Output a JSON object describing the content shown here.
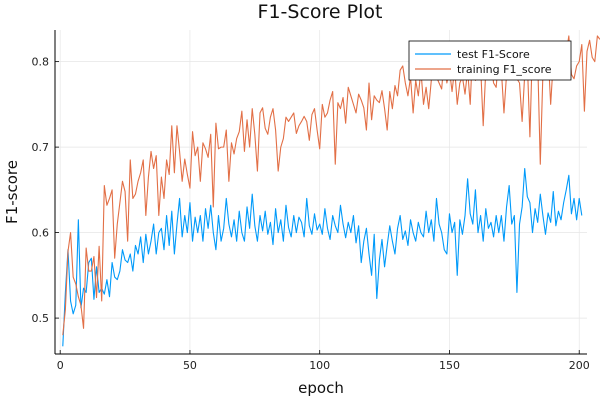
{
  "chart_data": {
    "type": "line",
    "title": "F1-Score Plot",
    "xlabel": "epoch",
    "ylabel": "F1-score",
    "xlim": [
      -2,
      203
    ],
    "ylim": [
      0.458,
      0.837
    ],
    "xticks": [
      0,
      50,
      100,
      150,
      200
    ],
    "yticks": [
      0.5,
      0.6,
      0.7,
      0.8
    ],
    "xtick_labels": [
      "0",
      "50",
      "100",
      "150",
      "200"
    ],
    "ytick_labels": [
      "0.5",
      "0.6",
      "0.7",
      "0.8"
    ],
    "grid": true,
    "legend_position": "top-right",
    "series": [
      {
        "name": "test F1-Score",
        "color": "#009AFA",
        "values": [
          0.467,
          0.53,
          0.58,
          0.52,
          0.505,
          0.515,
          0.615,
          0.512,
          0.535,
          0.53,
          0.565,
          0.57,
          0.522,
          0.56,
          0.53,
          0.535,
          0.528,
          0.545,
          0.525,
          0.565,
          0.548,
          0.545,
          0.555,
          0.58,
          0.568,
          0.565,
          0.575,
          0.555,
          0.585,
          0.575,
          0.595,
          0.565,
          0.598,
          0.575,
          0.59,
          0.61,
          0.575,
          0.6,
          0.605,
          0.58,
          0.62,
          0.585,
          0.625,
          0.575,
          0.61,
          0.64,
          0.595,
          0.62,
          0.6,
          0.635,
          0.59,
          0.618,
          0.6,
          0.62,
          0.59,
          0.628,
          0.605,
          0.632,
          0.6,
          0.58,
          0.62,
          0.59,
          0.605,
          0.64,
          0.61,
          0.595,
          0.615,
          0.59,
          0.625,
          0.6,
          0.59,
          0.63,
          0.605,
          0.645,
          0.608,
          0.59,
          0.62,
          0.602,
          0.625,
          0.598,
          0.612,
          0.586,
          0.628,
          0.6,
          0.615,
          0.59,
          0.632,
          0.606,
          0.595,
          0.62,
          0.6,
          0.618,
          0.612,
          0.595,
          0.64,
          0.608,
          0.598,
          0.622,
          0.603,
          0.61,
          0.598,
          0.628,
          0.605,
          0.592,
          0.62,
          0.608,
          0.6,
          0.632,
          0.61,
          0.594,
          0.612,
          0.6,
          0.62,
          0.588,
          0.608,
          0.565,
          0.59,
          0.605,
          0.575,
          0.55,
          0.598,
          0.523,
          0.568,
          0.592,
          0.56,
          0.585,
          0.608,
          0.59,
          0.575,
          0.605,
          0.62,
          0.592,
          0.602,
          0.585,
          0.615,
          0.6,
          0.59,
          0.612,
          0.6,
          0.595,
          0.625,
          0.6,
          0.615,
          0.59,
          0.64,
          0.61,
          0.6,
          0.58,
          0.575,
          0.622,
          0.6,
          0.612,
          0.55,
          0.615,
          0.598,
          0.62,
          0.663,
          0.622,
          0.61,
          0.65,
          0.6,
          0.62,
          0.59,
          0.628,
          0.605,
          0.612,
          0.595,
          0.62,
          0.6,
          0.62,
          0.59,
          0.63,
          0.655,
          0.61,
          0.62,
          0.53,
          0.61,
          0.63,
          0.675,
          0.642,
          0.635,
          0.6,
          0.628,
          0.612,
          0.645,
          0.62,
          0.598,
          0.623,
          0.612,
          0.648,
          0.608,
          0.625,
          0.615,
          0.635,
          0.65,
          0.667,
          0.622,
          0.64,
          0.615,
          0.64,
          0.62
        ]
      },
      {
        "name": "training F1_score",
        "color": "#E26F46",
        "values": [
          0.48,
          0.51,
          0.578,
          0.6,
          0.548,
          0.54,
          0.525,
          0.515,
          0.488,
          0.582,
          0.555,
          0.555,
          0.572,
          0.524,
          0.584,
          0.52,
          0.655,
          0.632,
          0.64,
          0.65,
          0.57,
          0.61,
          0.635,
          0.66,
          0.648,
          0.59,
          0.685,
          0.64,
          0.645,
          0.66,
          0.67,
          0.685,
          0.62,
          0.665,
          0.695,
          0.675,
          0.69,
          0.62,
          0.665,
          0.64,
          0.685,
          0.668,
          0.725,
          0.67,
          0.725,
          0.695,
          0.66,
          0.686,
          0.668,
          0.652,
          0.718,
          0.69,
          0.7,
          0.66,
          0.705,
          0.698,
          0.688,
          0.715,
          0.63,
          0.728,
          0.698,
          0.7,
          0.7,
          0.72,
          0.66,
          0.705,
          0.692,
          0.71,
          0.718,
          0.742,
          0.695,
          0.732,
          0.7,
          0.745,
          0.715,
          0.672,
          0.74,
          0.746,
          0.722,
          0.715,
          0.735,
          0.745,
          0.72,
          0.672,
          0.7,
          0.71,
          0.735,
          0.73,
          0.735,
          0.74,
          0.716,
          0.725,
          0.73,
          0.736,
          0.73,
          0.708,
          0.738,
          0.745,
          0.72,
          0.698,
          0.75,
          0.735,
          0.74,
          0.755,
          0.765,
          0.68,
          0.752,
          0.745,
          0.758,
          0.728,
          0.77,
          0.76,
          0.75,
          0.74,
          0.762,
          0.755,
          0.746,
          0.72,
          0.775,
          0.732,
          0.76,
          0.755,
          0.752,
          0.766,
          0.745,
          0.72,
          0.765,
          0.745,
          0.772,
          0.76,
          0.79,
          0.795,
          0.775,
          0.76,
          0.782,
          0.74,
          0.778,
          0.76,
          0.79,
          0.75,
          0.77,
          0.745,
          0.778,
          0.795,
          0.782,
          0.775,
          0.768,
          0.805,
          0.775,
          0.79,
          0.765,
          0.792,
          0.75,
          0.775,
          0.782,
          0.762,
          0.79,
          0.75,
          0.82,
          0.778,
          0.79,
          0.795,
          0.725,
          0.79,
          0.78,
          0.8,
          0.775,
          0.77,
          0.808,
          0.79,
          0.74,
          0.785,
          0.815,
          0.808,
          0.79,
          0.78,
          0.775,
          0.73,
          0.785,
          0.8,
          0.712,
          0.82,
          0.79,
          0.802,
          0.68,
          0.785,
          0.79,
          0.81,
          0.75,
          0.8,
          0.805,
          0.815,
          0.788,
          0.795,
          0.81,
          0.83,
          0.785,
          0.78,
          0.795,
          0.8,
          0.82,
          0.742,
          0.812,
          0.825,
          0.805,
          0.8,
          0.83,
          0.826
        ]
      }
    ]
  }
}
